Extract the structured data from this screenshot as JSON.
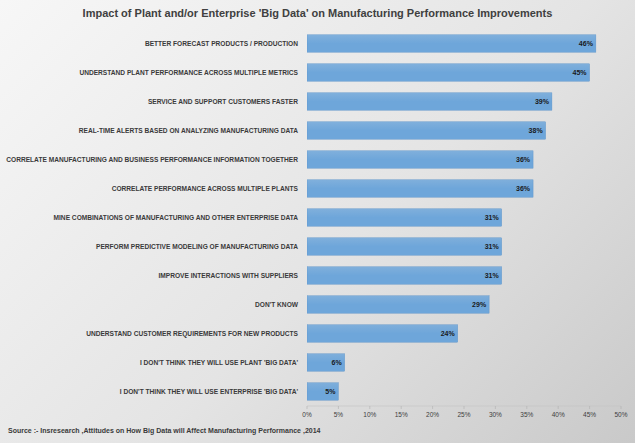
{
  "chart_data": {
    "type": "bar",
    "orientation": "horizontal",
    "title": "Impact of Plant and/or Enterprise 'Big Data' on Manufacturing Performance Improvements",
    "source": "Source :- Insresearch ,Attitudes on How Big Data will Affect Manufacturing Performance ,2014",
    "categories": [
      "BETTER FORECAST PRODUCTS / PRODUCTION",
      "UNDERSTAND PLANT PERFORMANCE ACROSS MULTIPLE METRICS",
      "SERVICE AND SUPPORT CUSTOMERS FASTER",
      "REAL-TIME ALERTS BASED ON ANALYZING MANUFACTURING DATA",
      "CORRELATE MANUFACTURING AND BUSINESS PERFORMANCE INFORMATION TOGETHER",
      "CORRELATE PERFORMANCE ACROSS MULTIPLE PLANTS",
      "MINE COMBINATIONS OF MANUFACTURING AND OTHER ENTERPRISE DATA",
      "PERFORM PREDICTIVE MODELING OF MANUFACTURING DATA",
      "IMPROVE INTERACTIONS WITH SUPPLIERS",
      "DON'T KNOW",
      "UNDERSTAND CUSTOMER REQUIREMENTS FOR NEW PRODUCTS",
      "I DON'T THINK THEY WILL USE PLANT 'BIG DATA'",
      "I DON'T THINK THEY WILL USE ENTERPRISE 'BIG DATA'"
    ],
    "values": [
      46,
      45,
      39,
      38,
      36,
      36,
      31,
      31,
      31,
      29,
      24,
      6,
      5
    ],
    "value_labels": [
      "46%",
      "45%",
      "39%",
      "38%",
      "36%",
      "36%",
      "31%",
      "31%",
      "31%",
      "29%",
      "24%",
      "6%",
      "5%"
    ],
    "data_labels": true,
    "color": "#6ea6da",
    "grid": false,
    "xlim": [
      0,
      50
    ],
    "xticks": [
      {
        "value": 0,
        "label": "0%"
      },
      {
        "value": 5,
        "label": "5%"
      },
      {
        "value": 10,
        "label": "10%"
      },
      {
        "value": 15,
        "label": "15%"
      },
      {
        "value": 20,
        "label": "20%"
      },
      {
        "value": 25,
        "label": "25%"
      },
      {
        "value": 30,
        "label": "30%"
      },
      {
        "value": 35,
        "label": "35%"
      },
      {
        "value": 40,
        "label": "40%"
      },
      {
        "value": 45,
        "label": "45%"
      },
      {
        "value": 50,
        "label": "50%"
      }
    ]
  }
}
